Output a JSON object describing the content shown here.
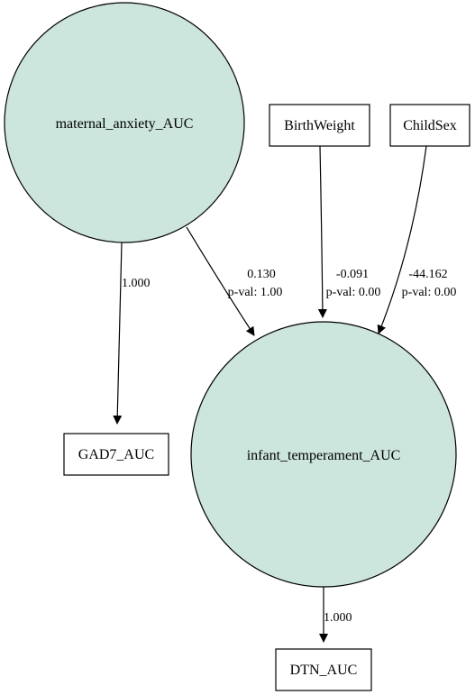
{
  "style": {
    "latent_fill": "#cce5dd",
    "stroke": "#000000",
    "background": "#ffffff"
  },
  "nodes": {
    "maternal_anxiety": {
      "label": "maternal_anxiety_AUC",
      "kind": "latent"
    },
    "infant_temperament": {
      "label": "infant_temperament_AUC",
      "kind": "latent"
    },
    "birth_weight": {
      "label": "BirthWeight",
      "kind": "observed"
    },
    "child_sex": {
      "label": "ChildSex",
      "kind": "observed"
    },
    "gad7": {
      "label": "GAD7_AUC",
      "kind": "observed"
    },
    "dtn": {
      "label": "DTN_AUC",
      "kind": "observed"
    }
  },
  "edges": {
    "maternal_to_gad7": {
      "estimate": "1.000"
    },
    "maternal_to_infant": {
      "estimate": "0.130",
      "pval": "p-val: 1.00"
    },
    "birthweight_to_infant": {
      "estimate": "-0.091",
      "pval": "p-val: 0.00"
    },
    "childsex_to_infant": {
      "estimate": "-44.162",
      "pval": "p-val: 0.00"
    },
    "infant_to_dtn": {
      "estimate": "1.000"
    }
  }
}
